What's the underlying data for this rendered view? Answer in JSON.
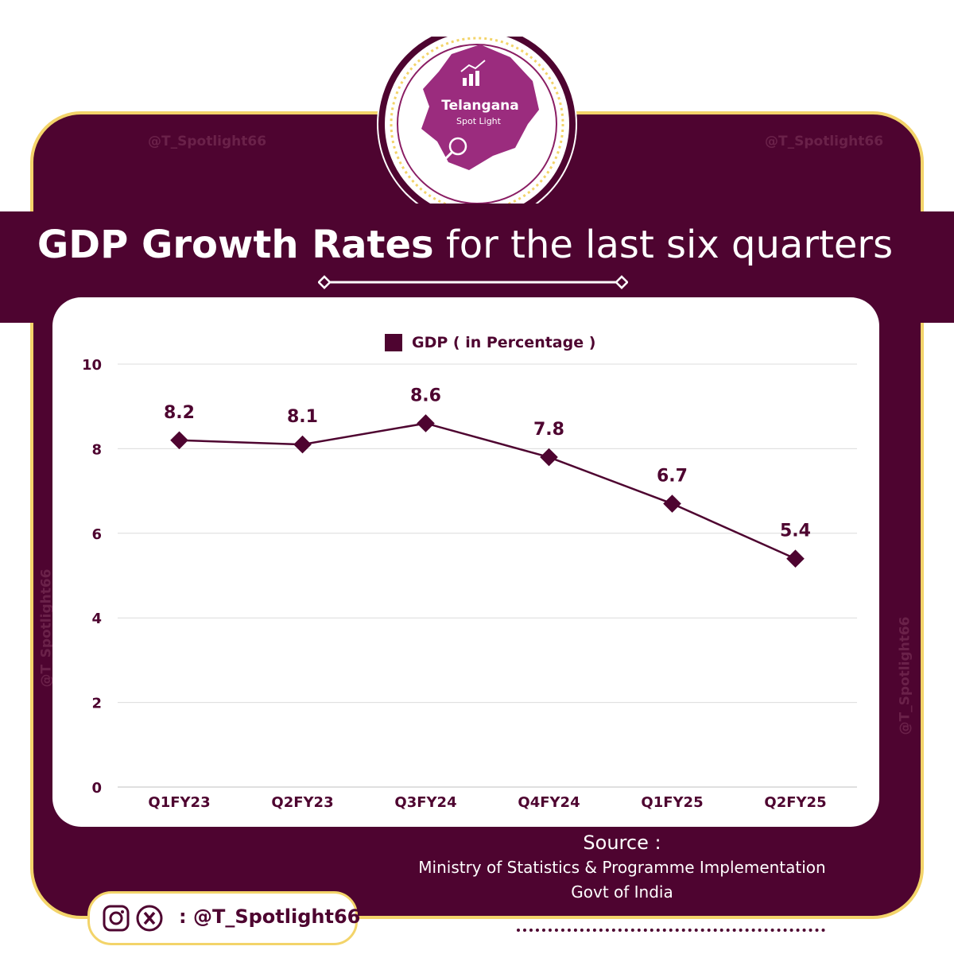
{
  "watermark": "@T_Spotlight66",
  "logo": {
    "line1": "Telangana",
    "line2": "Spot Light"
  },
  "title": {
    "bold": "GDP Growth Rates",
    "rest": "for the last six quarters"
  },
  "source": {
    "heading": "Source :",
    "line1": "Ministry of Statistics & Programme Implementation",
    "line2": "Govt of India"
  },
  "social": {
    "handle": ": @T_Spotlight66",
    "icons": [
      "instagram-icon",
      "x-icon"
    ]
  },
  "colors": {
    "primary": "#4e0430",
    "accent": "#f3d46a",
    "line": "#4e0430"
  },
  "chart_data": {
    "type": "line",
    "categories": [
      "Q1FY23",
      "Q2FY23",
      "Q3FY24",
      "Q4FY24",
      "Q1FY25",
      "Q2FY25"
    ],
    "series": [
      {
        "name": "GDP ( in Percentage )",
        "values": [
          8.2,
          8.1,
          8.6,
          7.8,
          6.7,
          5.4
        ]
      }
    ],
    "data_labels": [
      "8.2",
      "8.1",
      "8.6",
      "7.8",
      "6.7",
      "5.4"
    ],
    "yticks": [
      "0",
      "2",
      "4",
      "6",
      "8",
      "10"
    ],
    "ylim": [
      0,
      10
    ],
    "marker": "diamond",
    "grid": true,
    "legend_position": "top"
  }
}
